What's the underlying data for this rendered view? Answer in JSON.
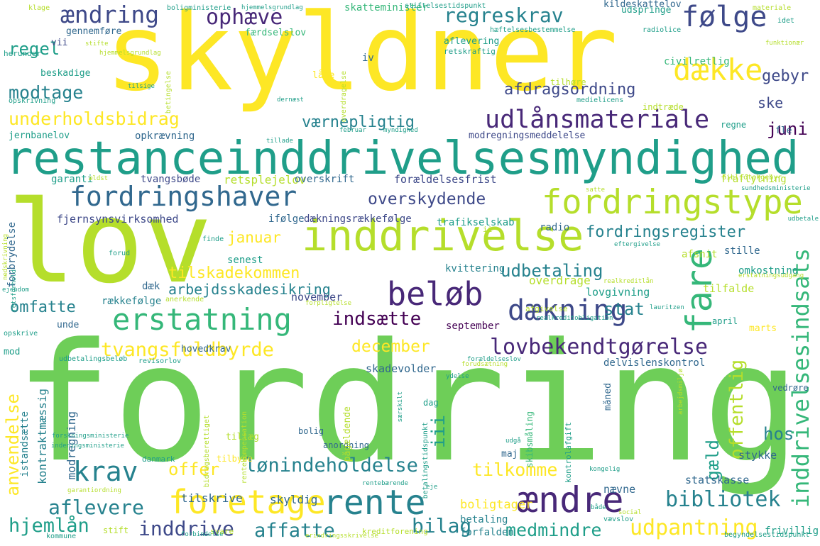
{
  "palette": {
    "yellow": "#fde725",
    "lime": "#b5de2b",
    "green": "#6ece58",
    "seagreen": "#35b779",
    "teal": "#1f9e89",
    "cyan": "#26828e",
    "blue": "#31688e",
    "indigo": "#3e4989",
    "purple": "#482878",
    "darkpurple": "#440154"
  },
  "words": [
    {
      "text": "fordring",
      "color": "green"
    },
    {
      "text": "skyldner",
      "color": "yellow"
    },
    {
      "text": "lov",
      "color": "lime"
    },
    {
      "text": "restanceinddrivelsesmyndighed",
      "color": "teal"
    },
    {
      "text": "inddrivelse",
      "color": "lime"
    },
    {
      "text": "fordringstype",
      "color": "lime"
    },
    {
      "text": "fordringshaver",
      "color": "blue"
    },
    {
      "text": "udlånsmateriale",
      "color": "purple"
    },
    {
      "text": "følge",
      "color": "indigo"
    },
    {
      "text": "dække",
      "color": "yellow"
    },
    {
      "text": "ændring",
      "color": "indigo"
    },
    {
      "text": "ophæve",
      "color": "purple"
    },
    {
      "text": "regreskrav",
      "color": "cyan"
    },
    {
      "text": "regel",
      "color": "teal"
    },
    {
      "text": "modtage",
      "color": "cyan"
    },
    {
      "text": "underholdsbidrag",
      "color": "yellow"
    },
    {
      "text": "værnepligtig",
      "color": "cyan"
    },
    {
      "text": "afdragsordning",
      "color": "indigo"
    },
    {
      "text": "gebyr",
      "color": "indigo"
    },
    {
      "text": "juni",
      "color": "darkpurple"
    },
    {
      "text": "ske",
      "color": "indigo"
    },
    {
      "text": "beløb",
      "color": "purple"
    },
    {
      "text": "dækning",
      "color": "indigo"
    },
    {
      "text": "erstatning",
      "color": "seagreen"
    },
    {
      "text": "krav",
      "color": "cyan"
    },
    {
      "text": "foretage",
      "color": "yellow"
    },
    {
      "text": "rente",
      "color": "cyan"
    },
    {
      "text": "ændre",
      "color": "purple"
    },
    {
      "text": "fare",
      "color": "seagreen"
    },
    {
      "text": "lovbekendtgørelse",
      "color": "purple"
    },
    {
      "text": "indsætte",
      "color": "darkpurple"
    },
    {
      "text": "tvangsfuldbyrde",
      "color": "yellow"
    },
    {
      "text": "december",
      "color": "yellow"
    },
    {
      "text": "lønindeholdelse",
      "color": "cyan"
    },
    {
      "text": "overskydende",
      "color": "indigo"
    },
    {
      "text": "tilskadekommen",
      "color": "yellow"
    },
    {
      "text": "arbejdsskadesikring",
      "color": "cyan"
    },
    {
      "text": "fordringsregister",
      "color": "cyan"
    },
    {
      "text": "udbetaling",
      "color": "cyan"
    },
    {
      "text": "januar",
      "color": "yellow"
    },
    {
      "text": "omfatte",
      "color": "cyan"
    },
    {
      "text": "bibliotek",
      "color": "cyan"
    },
    {
      "text": "aflevere",
      "color": "cyan"
    },
    {
      "text": "affatte",
      "color": "cyan"
    },
    {
      "text": "medmindre",
      "color": "teal"
    },
    {
      "text": "udpantning",
      "color": "yellow"
    },
    {
      "text": "bilag",
      "color": "cyan"
    },
    {
      "text": "inddrive",
      "color": "indigo"
    },
    {
      "text": "hjemlån",
      "color": "teal"
    },
    {
      "text": "offer",
      "color": "yellow"
    },
    {
      "text": "tilkomme",
      "color": "yellow"
    },
    {
      "text": "stat",
      "color": "cyan"
    },
    {
      "text": "hos",
      "color": "cyan"
    },
    {
      "text": "gæld",
      "color": "teal"
    },
    {
      "text": "offentlig",
      "color": "lime"
    },
    {
      "text": "inddrivelsesindsats",
      "color": "seagreen"
    },
    {
      "text": "iii",
      "color": "teal"
    },
    {
      "text": "anvendelse",
      "color": "yellow"
    },
    {
      "text": "kontraktmæssig",
      "color": "cyan"
    },
    {
      "text": "istandsætte",
      "color": "cyan"
    },
    {
      "text": "modregning",
      "color": "blue"
    },
    {
      "text": "tilskrive",
      "color": "blue"
    },
    {
      "text": "skyldig",
      "color": "blue"
    },
    {
      "text": "boligtager",
      "color": "yellow"
    },
    {
      "text": "betaling",
      "color": "cyan"
    },
    {
      "text": "forfalden",
      "color": "cyan"
    },
    {
      "text": "statskasse",
      "color": "blue"
    },
    {
      "text": "stykke",
      "color": "blue"
    },
    {
      "text": "nævne",
      "color": "blue"
    },
    {
      "text": "frivillig",
      "color": "teal"
    },
    {
      "text": "skadevolder",
      "color": "blue"
    },
    {
      "text": "delvislenskontrol",
      "color": "blue"
    },
    {
      "text": "september",
      "color": "darkpurple"
    },
    {
      "text": "november",
      "color": "indigo"
    },
    {
      "text": "rækkefølge",
      "color": "cyan"
    },
    {
      "text": "dæk",
      "color": "blue"
    },
    {
      "text": "overdrage",
      "color": "lime"
    },
    {
      "text": "kvittering",
      "color": "cyan"
    },
    {
      "text": "lovgivning",
      "color": "teal"
    },
    {
      "text": "tilfalde",
      "color": "lime"
    },
    {
      "text": "omkostning",
      "color": "teal"
    },
    {
      "text": "afsnit",
      "color": "lime"
    },
    {
      "text": "stille",
      "color": "blue"
    },
    {
      "text": "radio",
      "color": "blue"
    },
    {
      "text": "trafikselskab",
      "color": "teal"
    },
    {
      "text": "dækningsrækkefølge",
      "color": "indigo"
    },
    {
      "text": "ifølge",
      "color": "blue"
    },
    {
      "text": "fjernsynsvirksomhed",
      "color": "indigo"
    },
    {
      "text": "senest",
      "color": "teal"
    },
    {
      "text": "forbrydelse",
      "color": "blue"
    },
    {
      "text": "garanti",
      "color": "teal"
    },
    {
      "text": "tvangsbøde",
      "color": "indigo"
    },
    {
      "text": "retsplejelov",
      "color": "lime"
    },
    {
      "text": "overskrift",
      "color": "blue"
    },
    {
      "text": "forældelsesfrist",
      "color": "indigo"
    },
    {
      "text": "fraflytning",
      "color": "lime"
    },
    {
      "text": "modregningsmeddelelse",
      "color": "indigo"
    },
    {
      "text": "opkrævning",
      "color": "blue"
    },
    {
      "text": "jernbanelov",
      "color": "teal"
    },
    {
      "text": "beskadige",
      "color": "teal"
    },
    {
      "text": "iv",
      "color": "blue"
    },
    {
      "text": "låne",
      "color": "yellow"
    },
    {
      "text": "tilhøre",
      "color": "lime"
    },
    {
      "text": "indtræde",
      "color": "lime"
    },
    {
      "text": "regne",
      "color": "teal"
    },
    {
      "text": "fle",
      "color": "blue"
    },
    {
      "text": "civilretlig",
      "color": "seagreen"
    },
    {
      "text": "udspringe",
      "color": "teal"
    },
    {
      "text": "kildeskattelov",
      "color": "blue"
    },
    {
      "text": "skatteminister",
      "color": "seagreen"
    },
    {
      "text": "aflevering",
      "color": "teal"
    },
    {
      "text": "færdselslov",
      "color": "seagreen"
    },
    {
      "text": "retskraftig",
      "color": "teal"
    },
    {
      "text": "gennemføre",
      "color": "blue"
    },
    {
      "text": "herunder",
      "color": "teal"
    },
    {
      "text": "vii",
      "color": "indigo"
    },
    {
      "text": "hovedkrav",
      "color": "blue"
    },
    {
      "text": "unde",
      "color": "blue"
    },
    {
      "text": "mod",
      "color": "teal"
    },
    {
      "text": "opskrive",
      "color": "teal"
    },
    {
      "text": "april",
      "color": "teal"
    },
    {
      "text": "marts",
      "color": "yellow"
    },
    {
      "text": "maj",
      "color": "blue"
    },
    {
      "text": "måned",
      "color": "blue"
    },
    {
      "text": "bolig",
      "color": "blue"
    },
    {
      "text": "dag",
      "color": "teal"
    },
    {
      "text": "vedrøre",
      "color": "blue"
    },
    {
      "text": "anordning",
      "color": "blue"
    },
    {
      "text": "tillæg",
      "color": "lime"
    },
    {
      "text": "tilbyde",
      "color": "yellow"
    },
    {
      "text": "danmark",
      "color": "teal"
    },
    {
      "text": "svare",
      "color": "lime"
    },
    {
      "text": "kreditforening",
      "color": "lime"
    },
    {
      "text": "stift",
      "color": "lime"
    },
    {
      "text": "kommune",
      "color": "teal"
    },
    {
      "text": "vævslov",
      "color": "teal"
    },
    {
      "text": "pågældende",
      "color": "lime"
    },
    {
      "text": "skibsmåling",
      "color": "seagreen"
    },
    {
      "text": "kontrolafgift",
      "color": "teal"
    },
    {
      "text": "afgivelse",
      "color": "lime"
    },
    {
      "text": "kongelig",
      "color": "teal"
    },
    {
      "text": "begyndelsestidspunkt",
      "color": "teal"
    },
    {
      "text": "erindringsskrivelse",
      "color": "lime"
    },
    {
      "text": "forbindelse",
      "color": "teal"
    },
    {
      "text": "materiale",
      "color": "lime"
    },
    {
      "text": "idet",
      "color": "teal"
    },
    {
      "text": "klage",
      "color": "lime"
    },
    {
      "text": "boligministerie",
      "color": "teal"
    },
    {
      "text": "hjemmelsgrundlag",
      "color": "teal"
    },
    {
      "text": "stiftelsestidspunkt",
      "color": "teal"
    },
    {
      "text": "hæftelsesbestemmelse",
      "color": "teal"
    },
    {
      "text": "radiolice",
      "color": "teal"
    },
    {
      "text": "funktionær",
      "color": "lime"
    },
    {
      "text": "medielicens",
      "color": "teal"
    },
    {
      "text": "hjemmelsgrundlag",
      "color": "lime"
    },
    {
      "text": "tilsige",
      "color": "teal"
    },
    {
      "text": "stifte",
      "color": "lime"
    },
    {
      "text": "dernæst",
      "color": "teal"
    },
    {
      "text": "februar",
      "color": "teal"
    },
    {
      "text": "myndighed",
      "color": "teal"
    },
    {
      "text": "tillade",
      "color": "teal"
    },
    {
      "text": "ældst",
      "color": "lime"
    },
    {
      "text": "bibliotekgebyr",
      "color": "lime"
    },
    {
      "text": "sundhedsministerie",
      "color": "teal"
    },
    {
      "text": "udbetale",
      "color": "teal"
    },
    {
      "text": "eftergivelse",
      "color": "teal"
    },
    {
      "text": "realkreditlån",
      "color": "lime"
    },
    {
      "text": "lauritzen",
      "color": "teal"
    },
    {
      "text": "erstatningsudgang",
      "color": "lime"
    },
    {
      "text": "realkreditobligation",
      "color": "teal"
    },
    {
      "text": "betingelse",
      "color": "lime"
    },
    {
      "text": "overdragelse",
      "color": "lime"
    },
    {
      "text": "opskrivning",
      "color": "teal"
    },
    {
      "text": "anerkende",
      "color": "lime"
    },
    {
      "text": "forpligtelse",
      "color": "lime"
    },
    {
      "text": "udbetalingsbeløb",
      "color": "teal"
    },
    {
      "text": "revisorlov",
      "color": "teal"
    },
    {
      "text": "forældelseslov",
      "color": "teal"
    },
    {
      "text": "ejendom",
      "color": "teal"
    },
    {
      "text": "rentekompensation",
      "color": "lime"
    },
    {
      "text": "bidragsberettiget",
      "color": "lime"
    },
    {
      "text": "betalingstidspunkt",
      "color": "teal"
    },
    {
      "text": "rentebærende",
      "color": "teal"
    },
    {
      "text": "garantiordning",
      "color": "lime"
    },
    {
      "text": "eje",
      "color": "teal"
    },
    {
      "text": "både",
      "color": "teal"
    },
    {
      "text": "social",
      "color": "lime"
    },
    {
      "text": "udgå",
      "color": "teal"
    },
    {
      "text": "særskilt",
      "color": "teal"
    },
    {
      "text": "ydelse",
      "color": "teal"
    },
    {
      "text": "forudsætning",
      "color": "lime"
    },
    {
      "text": "arbejdsmiljø",
      "color": "lime"
    },
    {
      "text": "forskningsministerie",
      "color": "teal"
    },
    {
      "text": "indeningsministerie",
      "color": "teal"
    },
    {
      "text": "ii",
      "color": "lime"
    },
    {
      "text": "retsforhold",
      "color": "teal"
    },
    {
      "text": "nedskrivning",
      "color": "lime"
    },
    {
      "text": "finde",
      "color": "teal"
    },
    {
      "text": "forud",
      "color": "teal"
    },
    {
      "text": "satte",
      "color": "lime"
    }
  ]
}
